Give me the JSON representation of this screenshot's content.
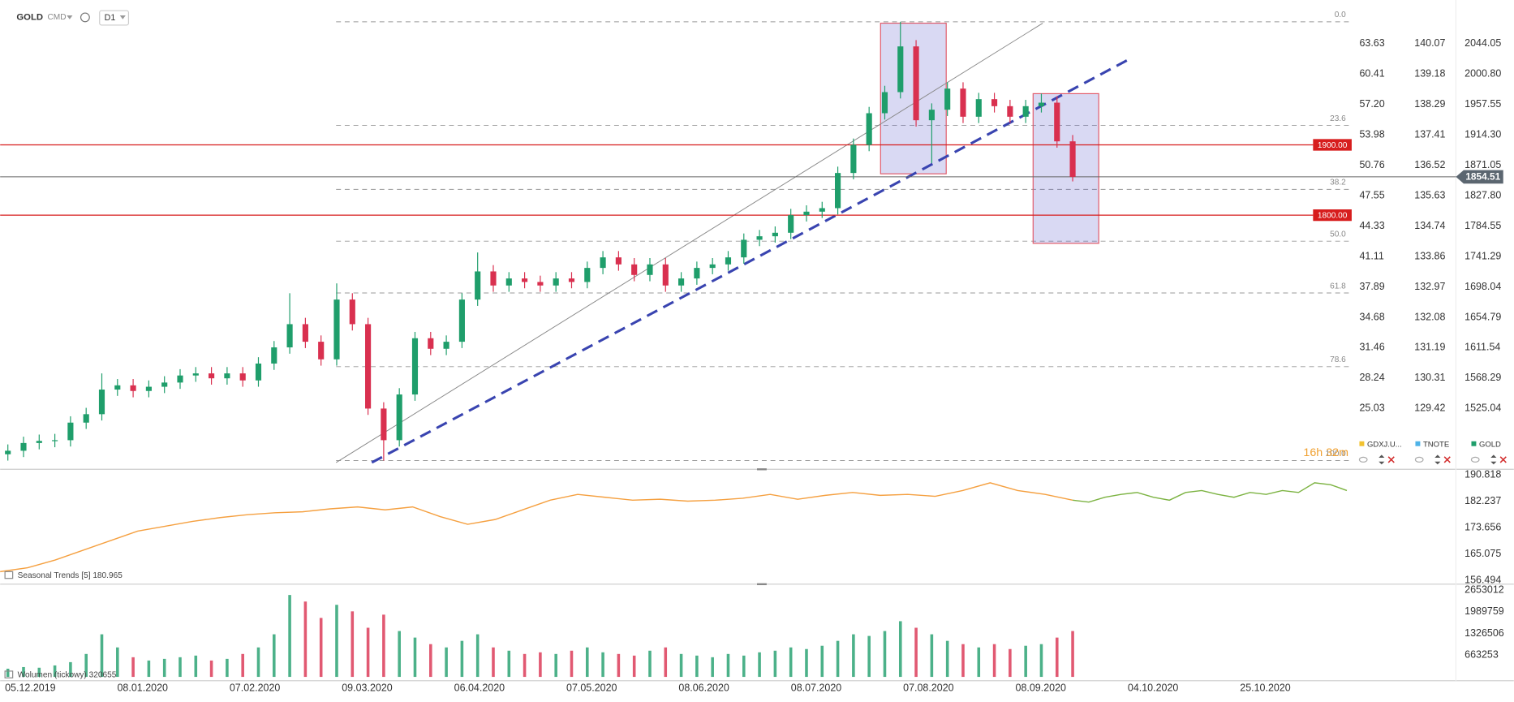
{
  "toolbar": {
    "symbol": "GOLD",
    "category": "CMD",
    "interval": "D1"
  },
  "x_axis_labels": [
    "05.12.2019",
    "08.01.2020",
    "07.02.2020",
    "09.03.2020",
    "06.04.2020",
    "07.05.2020",
    "08.06.2020",
    "08.07.2020",
    "07.08.2020",
    "08.09.2020",
    "04.10.2020",
    "25.10.2020"
  ],
  "chart_data": [
    {
      "type": "candlestick",
      "up_color": "#1f9e6b",
      "down_color": "#d9304f",
      "open": [
        1460,
        1465,
        1476,
        1479,
        1480,
        1505,
        1517,
        1552,
        1558,
        1550,
        1556,
        1562,
        1572,
        1575,
        1568,
        1575,
        1565,
        1589,
        1612,
        1645,
        1620,
        1595,
        1680,
        1645,
        1525,
        1480,
        1545,
        1625,
        1610,
        1620,
        1680,
        1720,
        1700,
        1710,
        1705,
        1700,
        1710,
        1705,
        1725,
        1740,
        1730,
        1715,
        1730,
        1700,
        1710,
        1725,
        1730,
        1740,
        1765,
        1770,
        1775,
        1800,
        1805,
        1810,
        1860,
        1900,
        1945,
        1975,
        2040,
        1935,
        1950,
        1980,
        1940,
        1965,
        1955,
        1940,
        1955,
        1960,
        1905
      ],
      "high": [
        1474,
        1485,
        1488,
        1489,
        1514,
        1526,
        1575,
        1567,
        1567,
        1565,
        1571,
        1581,
        1584,
        1584,
        1584,
        1584,
        1598,
        1621,
        1689,
        1654,
        1629,
        1703,
        1689,
        1654,
        1534,
        1554,
        1634,
        1634,
        1629,
        1689,
        1747,
        1729,
        1719,
        1719,
        1714,
        1719,
        1719,
        1734,
        1749,
        1749,
        1739,
        1739,
        1739,
        1719,
        1734,
        1739,
        1749,
        1774,
        1779,
        1784,
        1809,
        1814,
        1819,
        1869,
        1909,
        1954,
        1984,
        2075,
        2049,
        1959,
        1989,
        1989,
        1974,
        1974,
        1964,
        1964,
        1973,
        1969,
        1914
      ],
      "low": [
        1451,
        1456,
        1467,
        1470,
        1471,
        1496,
        1508,
        1543,
        1541,
        1541,
        1547,
        1553,
        1563,
        1559,
        1559,
        1556,
        1556,
        1580,
        1603,
        1611,
        1586,
        1586,
        1636,
        1516,
        1451,
        1471,
        1536,
        1601,
        1601,
        1611,
        1671,
        1691,
        1691,
        1696,
        1691,
        1691,
        1696,
        1696,
        1716,
        1721,
        1706,
        1706,
        1691,
        1691,
        1701,
        1716,
        1721,
        1731,
        1756,
        1761,
        1766,
        1791,
        1796,
        1801,
        1851,
        1891,
        1936,
        1966,
        1926,
        1874,
        1941,
        1931,
        1931,
        1946,
        1931,
        1931,
        1946,
        1896,
        1848
      ],
      "close": [
        1465,
        1476,
        1479,
        1480,
        1505,
        1517,
        1552,
        1558,
        1550,
        1556,
        1562,
        1572,
        1575,
        1568,
        1575,
        1565,
        1589,
        1612,
        1645,
        1620,
        1595,
        1680,
        1645,
        1525,
        1480,
        1545,
        1625,
        1610,
        1620,
        1680,
        1720,
        1700,
        1710,
        1705,
        1700,
        1710,
        1705,
        1725,
        1740,
        1730,
        1715,
        1730,
        1700,
        1710,
        1725,
        1730,
        1740,
        1765,
        1770,
        1775,
        1800,
        1805,
        1810,
        1860,
        1900,
        1945,
        1975,
        2040,
        1935,
        1950,
        1980,
        1940,
        1965,
        1955,
        1940,
        1955,
        1960,
        1905,
        1854.51
      ],
      "ylim": [
        1440,
        2106
      ],
      "yticks": [
        2044.05,
        {
          "value": 2000.8,
          "label": "2000.80"
        },
        1957.55,
        {
          "value": 1914.3,
          "label": "1914.30"
        },
        1871.05,
        {
          "value": 1827.8,
          "label": "1827.80"
        },
        1784.55,
        1741.29,
        1698.04,
        1654.79,
        1611.54,
        1568.29,
        1525.04
      ],
      "secondary_axes": {
        "GDXJ": [
          "63.63",
          "60.41",
          "57.20",
          "53.98",
          "50.76",
          "47.55",
          "44.33",
          "41.11",
          "37.89",
          "34.68",
          "31.46",
          "28.24",
          "25.03"
        ],
        "TNOTE": [
          "140.07",
          "139.18",
          "138.29",
          "137.41",
          "136.52",
          "135.63",
          "134.74",
          "133.86",
          "132.97",
          "132.08",
          "131.19",
          "130.31",
          "129.42"
        ]
      },
      "levels": [
        {
          "value": 1900,
          "label": "1900.00",
          "color": "#d71d1d"
        },
        {
          "value": 1800,
          "label": "1800.00",
          "color": "#d71d1d"
        }
      ],
      "last_price": {
        "value": 1854.51,
        "label": "1854.51"
      },
      "fibonacci": {
        "high": 2075,
        "low": 1451,
        "levels": [
          {
            "value": 0,
            "label": "0.0"
          },
          23.6,
          38.2,
          {
            "value": 50,
            "label": "50.0"
          },
          61.8,
          78.6,
          {
            "value": 100,
            "label": "100.0"
          }
        ]
      },
      "legend": [
        {
          "name": "GDXJ.U...",
          "color": "#f2c230"
        },
        {
          "name": "TNOTE",
          "color": "#4fb3e8"
        },
        {
          "name": "GOLD",
          "color": "#1f9e6b"
        }
      ],
      "countdown": "16h 32m"
    },
    {
      "type": "line",
      "label": "Seasonal  Trends [5] 180.965",
      "series": [
        {
          "color": "#f5a040",
          "values": [
            159.33,
            160.59,
            163.11,
            166.26,
            169.41,
            172.55,
            174.13,
            175.71,
            176.96,
            177.91,
            178.54,
            178.85,
            179.8,
            180.43,
            179.48,
            180.43,
            177.28,
            174.76,
            176.33,
            179.48,
            182.63,
            184.52,
            183.58,
            182.63,
            182.94,
            182.32,
            182.63,
            183.26,
            184.52,
            182.94,
            184.2,
            185.15,
            184.2,
            184.52,
            183.89,
            185.78,
            188.3,
            185.78,
            184.52,
            182.63
          ]
        },
        {
          "color": "#7cb342",
          "values": [
            182.63,
            182.0,
            183.58,
            184.52,
            185.15,
            183.58,
            182.63,
            185.15,
            185.78,
            184.52,
            183.58,
            185.15,
            184.52,
            185.78,
            185.15,
            188.3,
            187.67,
            185.78
          ]
        }
      ],
      "ylim": [
        155.55,
        192.39
      ],
      "yticks": [
        190.818,
        182.237,
        173.656,
        165.075,
        156.494
      ]
    },
    {
      "type": "bar",
      "label": "Wolumen (tickowy) 320655",
      "values": [
        250000,
        300000,
        280000,
        350000,
        450000,
        700000,
        1300000,
        900000,
        600000,
        500000,
        550000,
        600000,
        650000,
        500000,
        550000,
        700000,
        900000,
        1300000,
        2500000,
        2300000,
        1800000,
        2200000,
        2000000,
        1500000,
        1900000,
        1400000,
        1200000,
        1000000,
        900000,
        1100000,
        1300000,
        900000,
        800000,
        700000,
        750000,
        700000,
        800000,
        900000,
        750000,
        700000,
        650000,
        800000,
        900000,
        700000,
        650000,
        600000,
        700000,
        650000,
        750000,
        800000,
        900000,
        850000,
        950000,
        1100000,
        1300000,
        1250000,
        1400000,
        1700000,
        1500000,
        1300000,
        1100000,
        1000000,
        900000,
        1000000,
        850000,
        950000,
        1000000,
        1200000,
        1400000
      ],
      "ylim": [
        0,
        2800000
      ],
      "yticks": [
        663253,
        1326506,
        1989759,
        2653012
      ]
    }
  ]
}
